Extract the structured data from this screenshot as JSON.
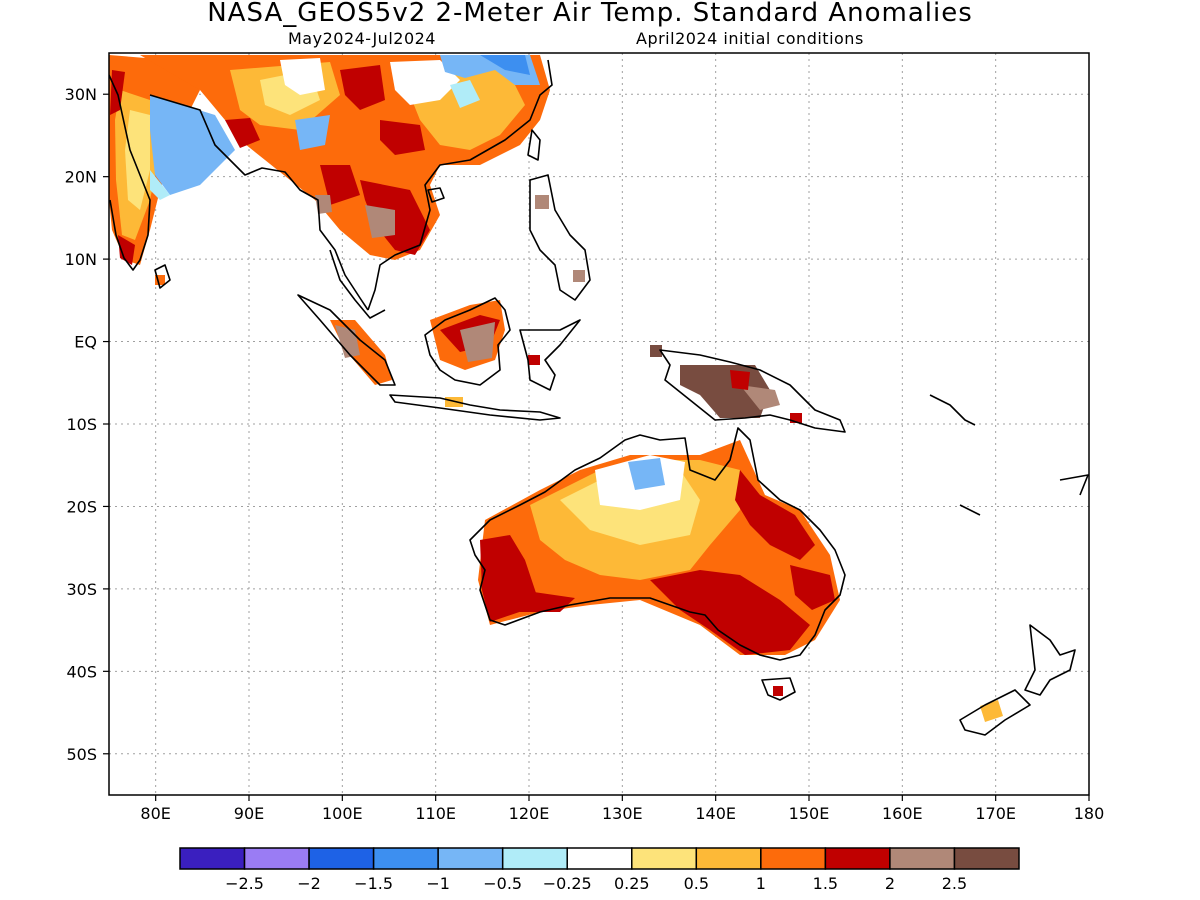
{
  "title": "NASA_GEOS5v2 2-Meter Air Temp. Standard Anomalies",
  "subtitle_left": "May2024-Jul2024",
  "subtitle_right": "April2024 initial conditions",
  "map": {
    "lon_range": [
      75,
      180
    ],
    "lat_range": [
      -55,
      35
    ],
    "lon_ticks": [
      "80E",
      "90E",
      "100E",
      "110E",
      "120E",
      "130E",
      "140E",
      "150E",
      "160E",
      "170E",
      "180"
    ],
    "lat_ticks": [
      "30N",
      "20N",
      "10N",
      "EQ",
      "10S",
      "20S",
      "30S",
      "40S",
      "50S"
    ],
    "grid": "dotted"
  },
  "colorbar": {
    "colors": [
      "#3a1fbf",
      "#9a7cf4",
      "#1e62e6",
      "#3d8ff0",
      "#76b6f6",
      "#b0ecf8",
      "#ffffff",
      "#fde37a",
      "#fdb937",
      "#fd6b0b",
      "#c00000",
      "#b08878",
      "#784c40"
    ],
    "labels": [
      "-2.5",
      "-2",
      "-1.5",
      "-1",
      "-0.5",
      "-0.25",
      "0.25",
      "0.5",
      "1",
      "1.5",
      "2",
      "2.5"
    ]
  }
}
